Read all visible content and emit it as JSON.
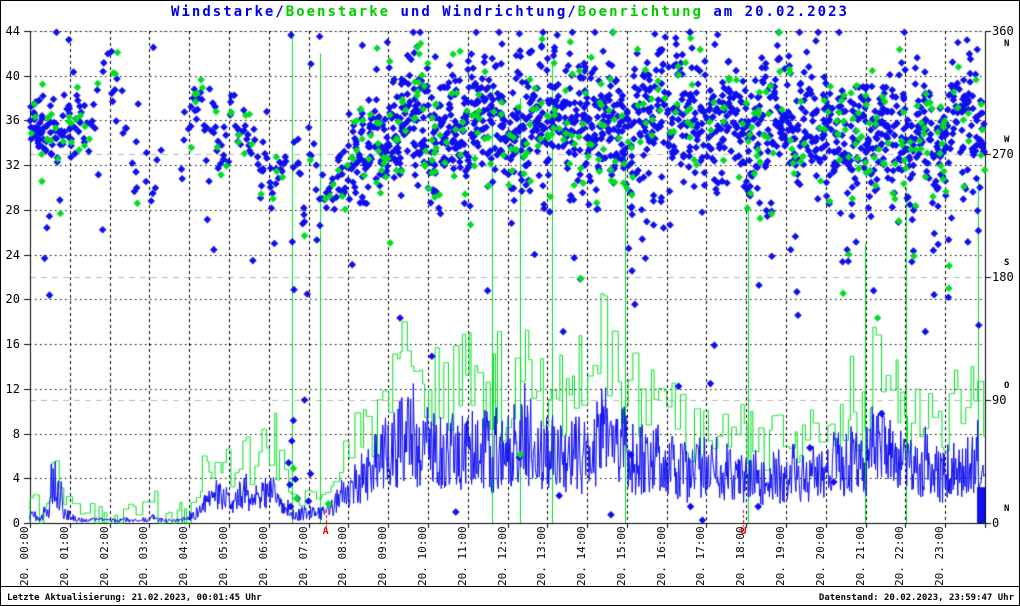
{
  "title": {
    "segments": [
      {
        "text": "Windstarke/",
        "color": "#0000ee"
      },
      {
        "text": "Boenstarke",
        "color": "#00cc00"
      },
      {
        "text": " und Windrichtung/",
        "color": "#0000ee"
      },
      {
        "text": "Boenrichtung",
        "color": "#00cc00"
      },
      {
        "text": " am 20.02.2023",
        "color": "#0000ee"
      }
    ]
  },
  "footer": {
    "left": "Letzte Aktualisierung: 21.02.2023, 00:01:45 Uhr",
    "right": "Datenstand: 20.02.2023, 23:59:47 Uhr"
  },
  "chart_data": {
    "type": "line+scatter",
    "title": "Windstarke/Boenstarke und Windrichtung/Boenrichtung am 20.02.2023",
    "colors": {
      "wind": "#0f0ff0",
      "gust": "#00dd22",
      "grid_black": "#000000",
      "grid_gray": "#b8b8b8",
      "sun_marker": "#e00000"
    },
    "left_axis": {
      "min": 0,
      "max": 44,
      "tick_step": 4,
      "ticks": [
        0,
        4,
        8,
        12,
        16,
        20,
        24,
        28,
        32,
        36,
        40,
        44
      ]
    },
    "right_axis": {
      "min": 0,
      "max": 360,
      "tick_step": 90,
      "ticks": [
        {
          "value": 0,
          "letter": "N"
        },
        {
          "value": 90,
          "letter": "O"
        },
        {
          "value": 180,
          "letter": "S"
        },
        {
          "value": 270,
          "letter": "W"
        },
        {
          "value": 360,
          "letter": "N"
        }
      ]
    },
    "x_axis": {
      "hours": 24,
      "labels": [
        "20. 00:00",
        "20. 01:00",
        "20. 02:00",
        "20. 03:00",
        "20. 04:00",
        "20. 05:00",
        "20. 06:00",
        "20. 07:00",
        "20. 08:00",
        "20. 09:00",
        "20. 10:00",
        "20. 11:00",
        "20. 12:00",
        "20. 13:00",
        "20. 14:00",
        "20. 15:00",
        "20. 16:00",
        "20. 17:00",
        "20. 18:00",
        "20. 19:00",
        "20. 20:00",
        "20. 21:00",
        "20. 22:00",
        "20. 23:00"
      ]
    },
    "sun_markers": [
      {
        "label": "A",
        "hour": 7.43
      },
      {
        "label": "U",
        "hour": 17.93
      }
    ],
    "noise_seed": 20230220,
    "resolution_minutes": 10,
    "series": [
      {
        "name": "Boenstarke",
        "type": "step-line",
        "axis": "left",
        "color_key": "gust",
        "values": [
          4,
          2,
          3,
          9,
          6,
          3,
          3,
          1.5,
          1.5,
          2,
          2,
          1.5,
          1.5,
          1.5,
          2,
          1.5,
          1.5,
          2,
          4,
          2,
          1.5,
          1.5,
          2,
          2,
          2,
          3,
          6,
          7,
          8,
          7,
          6,
          8,
          9,
          7,
          8,
          9,
          10,
          7,
          5,
          3,
          3,
          3,
          3,
          3,
          3,
          4,
          6,
          8,
          8,
          10,
          12,
          13,
          15,
          17,
          16,
          18,
          20,
          23,
          19,
          18,
          17,
          19,
          16,
          18,
          15,
          17,
          18,
          16,
          19,
          17,
          18,
          16,
          17,
          19,
          22,
          20,
          18,
          17,
          18,
          16,
          15,
          17,
          19,
          16,
          17,
          19,
          23,
          18,
          16,
          18,
          17,
          15,
          16,
          14,
          15,
          13,
          14,
          12,
          13,
          11,
          12,
          13,
          12,
          13,
          11,
          12,
          10,
          11,
          10,
          11,
          9,
          10,
          11,
          10,
          11,
          12,
          10,
          11,
          13,
          12,
          12,
          14,
          13,
          15,
          14,
          13,
          15,
          18,
          21,
          17,
          15,
          14,
          14,
          12,
          13,
          15,
          12,
          11,
          12,
          14,
          12,
          15,
          16,
          10
        ]
      },
      {
        "name": "Windstarke",
        "type": "line",
        "axis": "left",
        "color_key": "wind",
        "values": [
          0.8,
          0.6,
          1.5,
          5,
          3.5,
          1,
          0.6,
          0.4,
          0.3,
          0.4,
          0.4,
          0.3,
          0.3,
          0.3,
          0.4,
          0.3,
          0.3,
          0.4,
          0.6,
          0.4,
          0.3,
          0.3,
          0.3,
          0.5,
          0.8,
          1.2,
          2.5,
          3,
          3.5,
          3,
          2.5,
          3.5,
          4,
          3,
          3.5,
          4,
          4,
          3,
          2,
          1,
          1,
          1.2,
          1.2,
          1.2,
          1.5,
          2,
          3,
          4,
          4.5,
          5.5,
          6.5,
          7,
          8,
          9,
          9,
          10,
          11,
          11.5,
          10,
          9.5,
          9,
          10,
          8.5,
          9.5,
          8,
          9,
          9.5,
          8.5,
          10,
          9,
          9.5,
          8.5,
          9,
          10,
          11.5,
          10.5,
          9.5,
          9,
          9.5,
          8.5,
          8,
          9,
          10,
          8.5,
          9,
          10,
          11,
          9.5,
          8.5,
          9.5,
          9,
          8,
          8.5,
          7.5,
          8,
          7,
          7.5,
          6.5,
          7,
          6,
          6.5,
          7,
          6.5,
          7,
          6,
          6.5,
          5.5,
          6,
          5.5,
          6,
          5,
          5.5,
          6,
          5.5,
          6,
          6.5,
          5.5,
          6,
          7,
          6.5,
          6.5,
          7.5,
          7,
          8,
          7.5,
          7,
          8,
          9.5,
          11,
          9,
          8,
          7.5,
          7.5,
          6.5,
          7,
          8,
          6.5,
          6,
          6.5,
          7.5,
          6.5,
          8,
          8.5,
          5.5
        ]
      },
      {
        "name": "Windrichtung",
        "type": "scatter",
        "axis": "right",
        "color_key": "wind",
        "dir_mean": [
          290,
          288,
          285,
          282,
          285,
          290,
          292,
          290,
          288,
          300,
          320,
          335,
          340,
          330,
          300,
          260,
          250,
          245,
          250,
          255,
          null,
          null,
          270,
          280,
          295,
          300,
          298,
          290,
          282,
          270,
          300,
          290,
          280,
          270,
          262,
          255,
          258,
          262,
          265,
          268,
          260,
          255,
          255,
          250,
          245,
          240,
          250,
          260,
          270,
          275,
          280,
          285,
          282,
          278,
          280,
          285,
          290,
          288,
          284,
          286,
          285,
          290,
          288,
          292,
          286,
          284,
          288,
          285,
          290,
          287,
          292,
          289,
          290,
          288,
          285,
          290,
          294,
          291,
          288,
          292,
          290,
          286,
          289,
          293,
          290,
          287,
          291,
          289,
          292,
          288,
          289,
          291,
          288,
          290,
          287,
          290,
          288,
          290,
          292,
          289,
          291,
          290,
          290,
          288,
          291,
          293,
          290,
          289,
          291,
          290,
          288,
          292,
          290,
          291,
          289,
          292,
          290,
          288,
          291,
          290,
          290,
          289,
          292,
          290,
          288,
          291,
          292,
          290,
          289,
          291,
          290,
          292,
          290,
          291,
          289,
          292,
          290,
          288,
          291,
          290,
          292,
          289,
          290,
          291
        ],
        "density_per_bin": [
          14,
          14,
          13,
          12,
          11,
          10,
          9,
          7,
          5,
          4,
          3,
          3,
          3,
          3,
          3,
          3,
          3,
          2,
          3,
          2,
          0,
          0,
          2,
          3,
          5,
          5,
          6,
          6,
          5,
          5,
          5,
          6,
          5,
          5,
          5,
          6,
          6,
          5,
          4,
          4,
          5,
          5,
          5,
          5,
          5,
          6,
          7,
          9,
          12,
          13,
          14,
          15,
          16,
          17,
          18,
          18,
          18,
          18,
          18,
          18,
          18,
          18,
          18,
          18,
          18,
          18,
          18,
          18,
          18,
          18,
          18,
          18,
          18,
          18,
          18,
          18,
          18,
          18,
          18,
          18,
          18,
          18,
          18,
          18,
          18,
          18,
          18,
          18,
          18,
          18,
          18,
          18,
          18,
          18,
          18,
          18,
          16,
          16,
          16,
          16,
          16,
          16,
          16,
          16,
          16,
          16,
          16,
          16,
          16,
          16,
          16,
          16,
          16,
          16,
          16,
          16,
          16,
          16,
          16,
          16,
          17,
          17,
          17,
          17,
          17,
          17,
          17,
          17,
          17,
          17,
          17,
          17,
          17,
          17,
          17,
          17,
          17,
          17,
          17,
          17,
          17,
          17,
          17,
          17
        ],
        "spread_per_hour": [
          12,
          16,
          20,
          15,
          12,
          14,
          16,
          16,
          22,
          26,
          28,
          28,
          28,
          28,
          28,
          28,
          28,
          26,
          26,
          26,
          26,
          26,
          28,
          28
        ],
        "extra_points": [
          [
            2.05,
            345
          ],
          [
            3.1,
            348
          ],
          [
            6.5,
            44
          ],
          [
            6.53,
            28
          ],
          [
            6.55,
            12
          ],
          [
            6.58,
            60
          ],
          [
            6.62,
            75
          ],
          [
            6.67,
            32
          ],
          [
            6.72,
            18
          ],
          [
            6.9,
            90
          ],
          [
            7.0,
            16
          ],
          [
            7.05,
            36
          ],
          [
            7.28,
            356
          ],
          [
            6.56,
            357
          ],
          [
            12.3,
            358
          ],
          [
            13.25,
            357
          ],
          [
            4.62,
            200
          ],
          [
            5.6,
            192
          ],
          [
            9.3,
            150
          ],
          [
            10.1,
            122
          ],
          [
            10.7,
            8
          ],
          [
            11.5,
            170
          ],
          [
            12.3,
            48
          ],
          [
            13.3,
            20
          ],
          [
            13.4,
            140
          ],
          [
            15.1,
            50
          ],
          [
            15.2,
            160
          ],
          [
            16.3,
            100
          ],
          [
            16.6,
            12
          ],
          [
            16.9,
            2
          ],
          [
            17.2,
            130
          ],
          [
            19.3,
            152
          ],
          [
            19.6,
            55
          ],
          [
            21.2,
            170
          ],
          [
            21.4,
            80
          ],
          [
            22.5,
            140
          ],
          [
            14.6,
            6
          ],
          [
            18.3,
            12
          ],
          [
            20.2,
            30
          ],
          [
            17.1,
            102
          ]
        ]
      },
      {
        "name": "Boenrichtung",
        "type": "scatter",
        "axis": "right",
        "color_key": "gust",
        "fraction_of_wind_points": 0.22,
        "extra_points": [
          [
            6.62,
            40
          ],
          [
            6.7,
            18
          ],
          [
            7.5,
            14
          ],
          [
            12.32,
            50
          ],
          [
            9.05,
            205
          ],
          [
            21.3,
            150
          ],
          [
            0.3,
            250
          ]
        ]
      }
    ],
    "gust_spikes": [
      [
        6.58,
        44
      ],
      [
        7.3,
        42
      ],
      [
        11.62,
        39
      ],
      [
        12.32,
        38
      ],
      [
        13.12,
        41
      ],
      [
        14.95,
        33
      ],
      [
        18.05,
        28
      ],
      [
        20.98,
        25
      ],
      [
        22.02,
        30
      ],
      [
        23.83,
        31
      ]
    ]
  }
}
